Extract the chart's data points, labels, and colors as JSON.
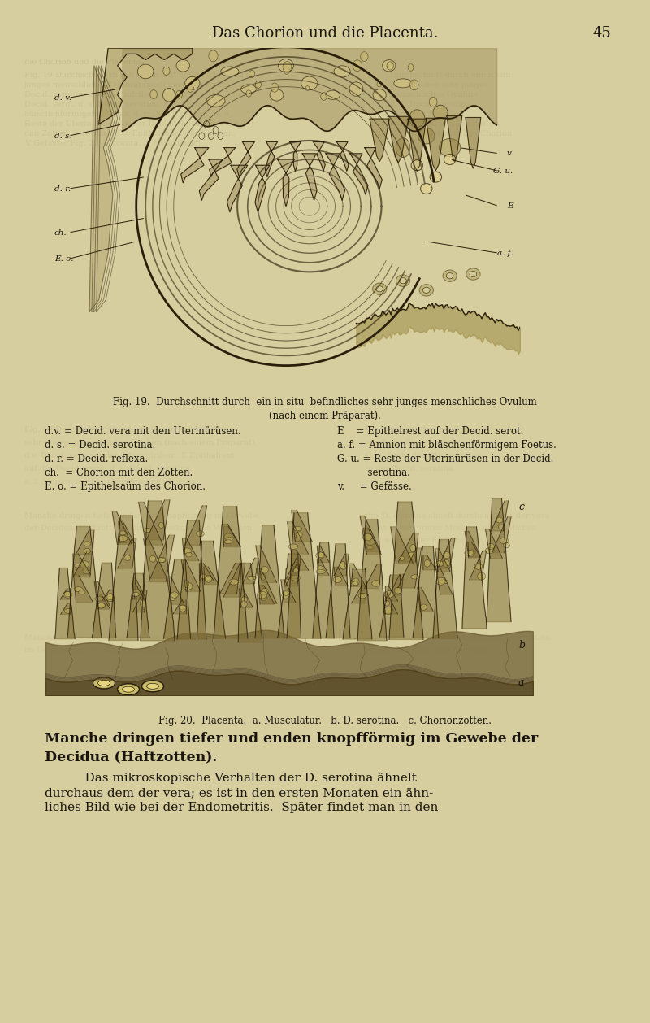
{
  "bg_color": "#d6ce9e",
  "text_color": "#1a1510",
  "title": "Das Chorion und die Placenta.",
  "page_num": "45",
  "fig19_cap1": "Fig. 19.  Durchschnitt durch  ein in situ  befindliches sehr junges menschliches Ovulum",
  "fig19_cap2": "(nach einem Präparat).",
  "legend": [
    [
      "d.v. = Decid. vera mit den Uterin’r’sen.",
      "E    = Epithelrest auf der Decid. serot."
    ],
    [
      "d. s. = Decid. serotina.",
      "a. f. = Amnion mit bläschenförmigem Foetus."
    ],
    [
      "d. r. = Decid. reflexa.",
      "G. u. = Reste der Uterinürüsen in der Decid."
    ],
    [
      "ch.  = Chorion mit den Zotten.",
      "          serotina."
    ],
    [
      "E. o. = Epithelsaüm des Chorion.",
      "v.     = Gefässe."
    ]
  ],
  "fig20_cap": "Fig. 20.  Placenta.  a. Musculatur.   b. D. serotina.   c. Chorionzotten.",
  "body1": "Manche dringen tiefer und enden knopfförmig im Gewebe der",
  "body2": "Decidua (Haftzotten).",
  "body3": "    Das mikroskopische Verhalten der D. serotina ähnelt",
  "body4": "durchaus dem der vera; es ist in den ersten Monaten ein ähn-",
  "body5": "liches Bild wie bei der Endometritis.  Später findet man in den"
}
